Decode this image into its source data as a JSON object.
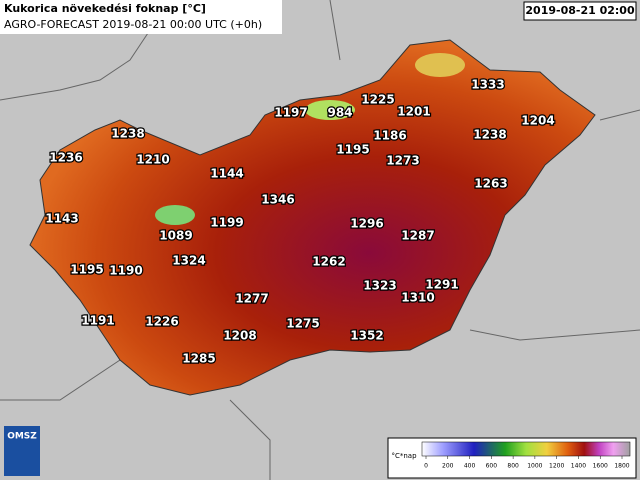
{
  "header": {
    "title": "Kukorica növekedési foknap [°C]",
    "subtitle": "AGRO-FORECAST 2019-08-21 00:00 UTC (+0h)",
    "date": "2019-08-21 02:00"
  },
  "stations": [
    1238,
    1236,
    1210,
    1143,
    1144,
    1197,
    984,
    1225,
    1201,
    1333,
    1186,
    1195,
    1238,
    1204,
    1273,
    1263,
    1346,
    1089,
    1199,
    1296,
    1287,
    1195,
    1190,
    1324,
    1262,
    1323,
    1310,
    1291,
    1277,
    1191,
    1226,
    1208,
    1275,
    1352,
    1285
  ],
  "legend": {
    "unit": "°C*nap",
    "ticks": [
      0,
      200,
      400,
      600,
      800,
      1000,
      1200,
      1400,
      1600,
      1800
    ]
  },
  "logo": "OMSZ"
}
